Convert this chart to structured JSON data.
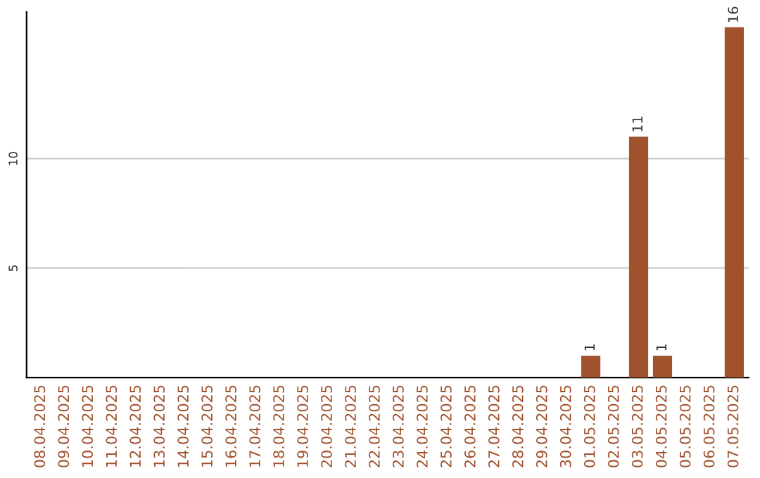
{
  "chart_data": {
    "type": "bar",
    "categories": [
      "08.04.2025",
      "09.04.2025",
      "10.04.2025",
      "11.04.2025",
      "12.04.2025",
      "13.04.2025",
      "14.04.2025",
      "15.04.2025",
      "16.04.2025",
      "17.04.2025",
      "18.04.2025",
      "19.04.2025",
      "20.04.2025",
      "21.04.2025",
      "22.04.2025",
      "23.04.2025",
      "24.04.2025",
      "25.04.2025",
      "26.04.2025",
      "27.04.2025",
      "28.04.2025",
      "29.04.2025",
      "30.04.2025",
      "01.05.2025",
      "02.05.2025",
      "03.05.2025",
      "04.05.2025",
      "05.05.2025",
      "06.05.2025",
      "07.05.2025"
    ],
    "values": [
      0,
      0,
      0,
      0,
      0,
      0,
      0,
      0,
      0,
      0,
      0,
      0,
      0,
      0,
      0,
      0,
      0,
      0,
      0,
      0,
      0,
      0,
      0,
      1,
      0,
      11,
      1,
      0,
      0,
      16
    ],
    "value_labels": [
      null,
      null,
      null,
      null,
      null,
      null,
      null,
      null,
      null,
      null,
      null,
      null,
      null,
      null,
      null,
      null,
      null,
      null,
      null,
      null,
      null,
      null,
      null,
      "1",
      null,
      "11",
      "1",
      null,
      null,
      "16"
    ],
    "color": "#a0522d",
    "ylim": [
      0,
      16.7
    ],
    "yticks": [
      5,
      10
    ],
    "grid": "y",
    "legend": false
  }
}
